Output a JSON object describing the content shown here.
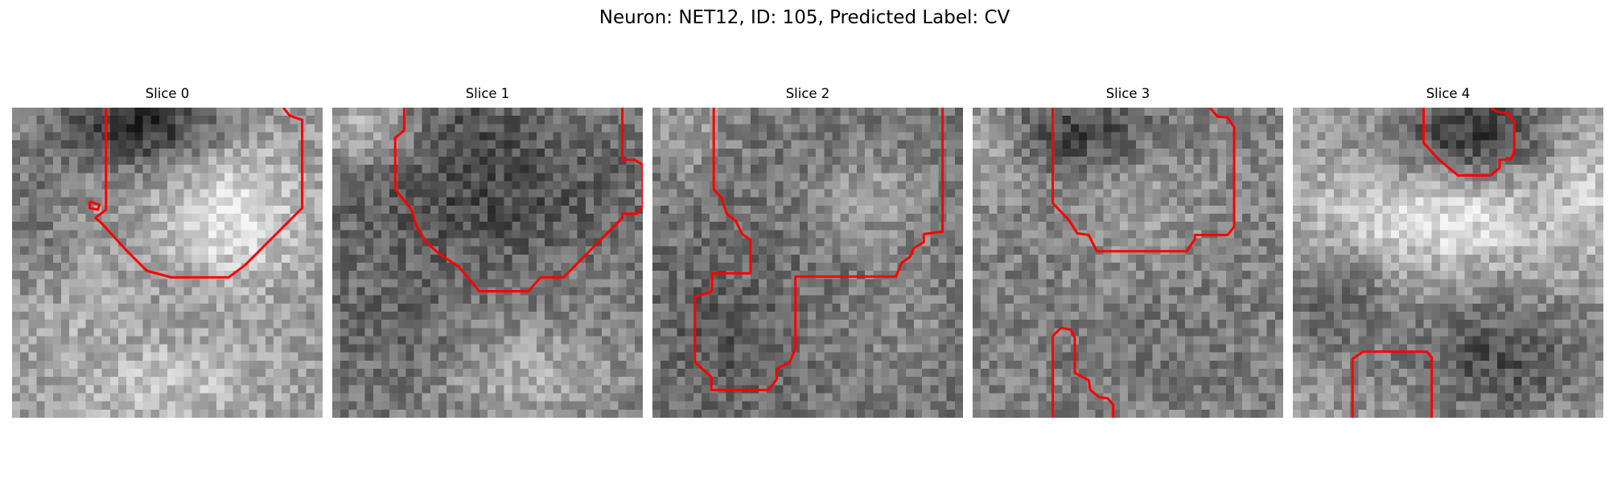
{
  "figure": {
    "title": "Neuron: NET12, ID: 105, Predicted Label: CV",
    "contour_color": "#ff0000",
    "colormap": "gray"
  },
  "panels": [
    {
      "title": "Slice 0",
      "seed": 11,
      "field": "s0",
      "contours": [
        [
          [
            11.5,
            0
          ],
          [
            11.5,
            12.5
          ],
          [
            10.2,
            13.5
          ],
          [
            11,
            14.2
          ],
          [
            14,
            17.5
          ],
          [
            16.5,
            20
          ],
          [
            19.5,
            20.8
          ],
          [
            26.5,
            20.8
          ],
          [
            28.5,
            19.3
          ],
          [
            35.5,
            12.3
          ],
          [
            35.5,
            1.5
          ],
          [
            34,
            1
          ],
          [
            33.2,
            0
          ]
        ],
        [
          [
            9.5,
            11.5
          ],
          [
            10.7,
            11.9
          ],
          [
            10.5,
            12.5
          ],
          [
            9.5,
            12.3
          ],
          [
            9.5,
            11.5
          ]
        ]
      ]
    },
    {
      "title": "Slice 1",
      "seed": 23,
      "field": "s1",
      "contours": [
        [
          [
            8.8,
            0
          ],
          [
            8.8,
            2.8
          ],
          [
            7.7,
            3.7
          ],
          [
            7.7,
            10
          ],
          [
            8.5,
            11
          ],
          [
            9.7,
            12.5
          ],
          [
            10.3,
            14.5
          ],
          [
            11.5,
            16.5
          ],
          [
            13.2,
            18
          ],
          [
            15.5,
            19.5
          ],
          [
            18,
            22.5
          ],
          [
            24,
            22.5
          ],
          [
            25.5,
            20.8
          ],
          [
            28.3,
            20.8
          ],
          [
            35.5,
            13.5
          ],
          [
            35.5,
            13
          ],
          [
            37.3,
            13
          ],
          [
            38,
            12
          ],
          [
            38,
            7
          ],
          [
            37,
            6.4
          ],
          [
            35.5,
            6.4
          ],
          [
            35.5,
            0
          ]
        ]
      ]
    },
    {
      "title": "Slice 2",
      "seed": 37,
      "field": "s2",
      "contours": [
        [
          [
            7.5,
            0
          ],
          [
            7.5,
            10
          ],
          [
            8.4,
            11
          ],
          [
            9.1,
            13
          ],
          [
            10.2,
            13.9
          ],
          [
            11,
            15.5
          ],
          [
            12,
            16.2
          ],
          [
            12,
            20.3
          ],
          [
            7.3,
            20.3
          ],
          [
            7.3,
            22.5
          ],
          [
            5.2,
            23.2
          ],
          [
            5.2,
            31.2
          ],
          [
            7.2,
            33
          ],
          [
            7.2,
            34.6
          ],
          [
            14.2,
            34.6
          ],
          [
            15.2,
            33.3
          ],
          [
            15.2,
            32
          ],
          [
            16.8,
            31.2
          ],
          [
            17.5,
            29.5
          ],
          [
            17.5,
            20.7
          ],
          [
            29.8,
            20.7
          ],
          [
            30.5,
            19
          ],
          [
            31.5,
            18.3
          ],
          [
            32,
            17.2
          ],
          [
            33.2,
            16.5
          ],
          [
            33.2,
            15.5
          ],
          [
            35.5,
            15.2
          ],
          [
            35.5,
            0
          ]
        ]
      ]
    },
    {
      "title": "Slice 3",
      "seed": 53,
      "field": "s3",
      "contours": [
        [
          [
            9.8,
            0
          ],
          [
            9.8,
            11.7
          ],
          [
            11.8,
            13.8
          ],
          [
            12.8,
            15.4
          ],
          [
            14.2,
            15.6
          ],
          [
            15.2,
            17.6
          ],
          [
            26.2,
            17.6
          ],
          [
            27.2,
            16.1
          ],
          [
            27.2,
            15.6
          ],
          [
            31.2,
            15.6
          ],
          [
            32,
            14.6
          ],
          [
            32,
            2.4
          ],
          [
            31.2,
            1.2
          ],
          [
            30,
            1.1
          ],
          [
            29,
            0
          ]
        ],
        [
          [
            9.8,
            38
          ],
          [
            9.8,
            28
          ],
          [
            10.8,
            27
          ],
          [
            12,
            27.2
          ],
          [
            12.5,
            28.2
          ],
          [
            12.5,
            32.5
          ],
          [
            14.2,
            33.4
          ],
          [
            14.4,
            34.6
          ],
          [
            15.5,
            35.5
          ],
          [
            16.5,
            35.6
          ],
          [
            17.2,
            36.4
          ],
          [
            17.2,
            38
          ]
        ]
      ]
    },
    {
      "title": "Slice 4",
      "seed": 71,
      "field": "s4",
      "contours": [
        [
          [
            16,
            0
          ],
          [
            16,
            4.3
          ],
          [
            17.8,
            6.3
          ],
          [
            20.2,
            8.3
          ],
          [
            24.2,
            8.3
          ],
          [
            25.3,
            7.4
          ],
          [
            25.3,
            6.4
          ],
          [
            26.7,
            6.3
          ],
          [
            27.1,
            5.3
          ],
          [
            27.1,
            1.7
          ],
          [
            26.3,
            0.7
          ],
          [
            25,
            0.5
          ],
          [
            24.2,
            0
          ]
        ],
        [
          [
            7.3,
            38
          ],
          [
            7.3,
            30.8
          ],
          [
            8.6,
            29.9
          ],
          [
            16.4,
            29.9
          ],
          [
            17,
            30.6
          ],
          [
            17,
            38
          ]
        ]
      ]
    }
  ]
}
